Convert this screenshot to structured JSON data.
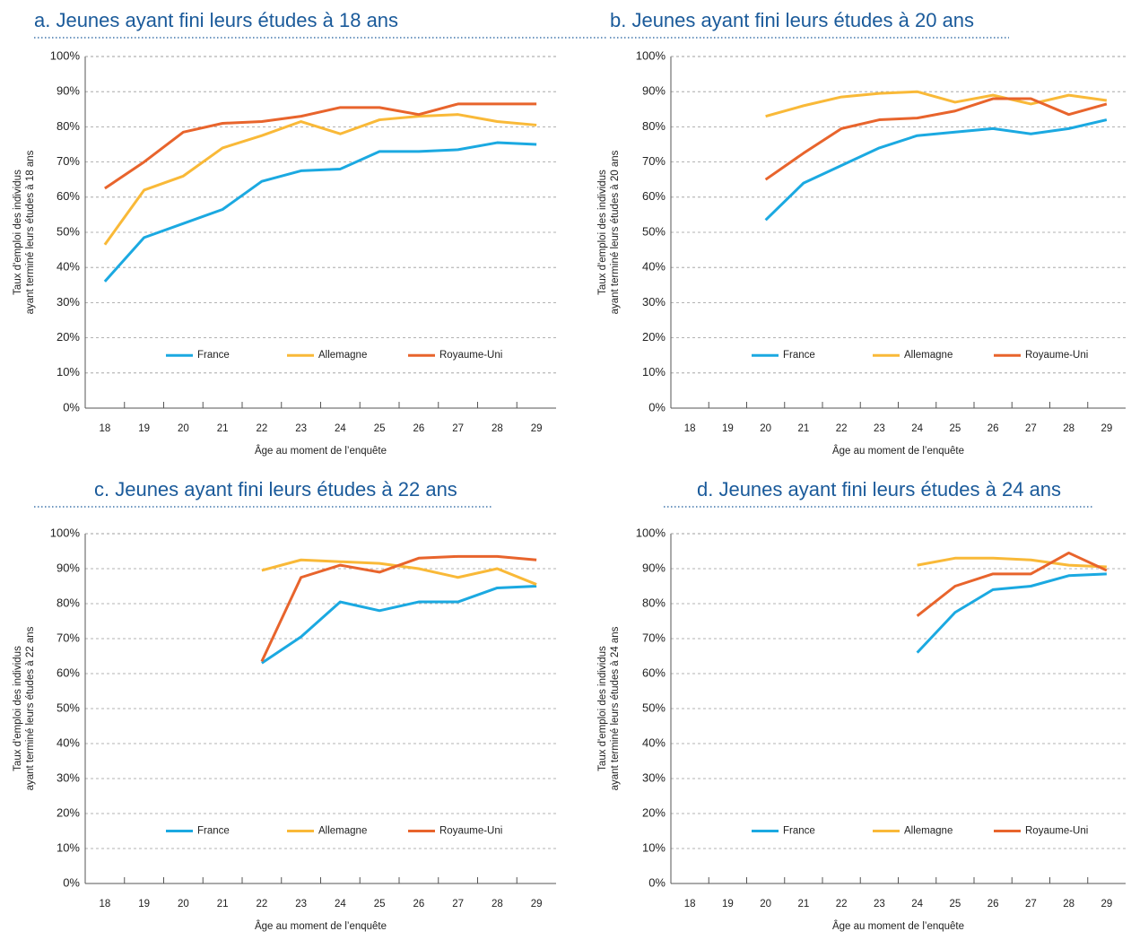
{
  "chart_data": [
    {
      "type": "line",
      "title": "a. Jeunes ayant fini leurs études à 18 ans",
      "ylabel": [
        "Taux d'emploi des individus",
        "ayant terminé leurs études à 18 ans"
      ],
      "xlabel": "Âge au moment de l’enquête",
      "categories": [
        "18",
        "19",
        "20",
        "21",
        "22",
        "23",
        "24",
        "25",
        "26",
        "27",
        "28",
        "29"
      ],
      "ylim": [
        0,
        100
      ],
      "yticks": [
        {
          "value": 0,
          "label": "0%"
        },
        {
          "value": 10,
          "label": "10%"
        },
        {
          "value": 20,
          "label": "20%"
        },
        {
          "value": 30,
          "label": "30%"
        },
        {
          "value": 40,
          "label": "40%"
        },
        {
          "value": 50,
          "label": "50%"
        },
        {
          "value": 60,
          "label": "60%"
        },
        {
          "value": 70,
          "label": "70%"
        },
        {
          "value": 80,
          "label": "80%"
        },
        {
          "value": 90,
          "label": "90%"
        },
        {
          "value": 100,
          "label": "100%"
        }
      ],
      "grid": true,
      "series": [
        {
          "name": "France",
          "color": "#1ba9e1",
          "values": [
            36,
            48.5,
            52.5,
            56.5,
            64.5,
            67.5,
            68,
            73,
            73,
            73.5,
            75.5,
            75
          ]
        },
        {
          "name": "Allemagne",
          "color": "#f9b938",
          "values": [
            46.5,
            62,
            66,
            74,
            77.5,
            81.5,
            78,
            82,
            83,
            83.5,
            81.5,
            80.5
          ]
        },
        {
          "name": "Royaume-Uni",
          "color": "#e8642c",
          "values": [
            62.5,
            70,
            78.5,
            81,
            81.5,
            83,
            85.5,
            85.5,
            83.5,
            86.5,
            86.5,
            86.5
          ]
        }
      ]
    },
    {
      "type": "line",
      "title": "b. Jeunes ayant fini leurs études à 20 ans",
      "ylabel": [
        "Taux d'emploi des individus",
        "ayant terminé leurs études à 20 ans"
      ],
      "xlabel": "Âge au moment de l’enquête",
      "categories": [
        "18",
        "19",
        "20",
        "21",
        "22",
        "23",
        "24",
        "25",
        "26",
        "27",
        "28",
        "29"
      ],
      "ylim": [
        0,
        100
      ],
      "yticks": [
        {
          "value": 0,
          "label": "0%"
        },
        {
          "value": 10,
          "label": "10%"
        },
        {
          "value": 20,
          "label": "20%"
        },
        {
          "value": 30,
          "label": "30%"
        },
        {
          "value": 40,
          "label": "40%"
        },
        {
          "value": 50,
          "label": "50%"
        },
        {
          "value": 60,
          "label": "60%"
        },
        {
          "value": 70,
          "label": "70%"
        },
        {
          "value": 80,
          "label": "80%"
        },
        {
          "value": 90,
          "label": "90%"
        },
        {
          "value": 100,
          "label": "100%"
        }
      ],
      "grid": true,
      "series": [
        {
          "name": "France",
          "color": "#1ba9e1",
          "values": [
            null,
            null,
            53.5,
            64,
            69,
            74,
            77.5,
            78.5,
            79.5,
            78,
            79.5,
            82
          ]
        },
        {
          "name": "Allemagne",
          "color": "#f9b938",
          "values": [
            null,
            null,
            83,
            86,
            88.5,
            89.5,
            90,
            87,
            89,
            86.5,
            89,
            87.5
          ]
        },
        {
          "name": "Royaume-Uni",
          "color": "#e8642c",
          "values": [
            null,
            null,
            65,
            72.5,
            79.5,
            82,
            82.5,
            84.5,
            88,
            88,
            83.5,
            86.5
          ]
        }
      ]
    },
    {
      "type": "line",
      "title": "c. Jeunes ayant fini leurs études à 22 ans",
      "ylabel": [
        "Taux d'emploi des individus",
        "ayant terminé leurs études à 22 ans"
      ],
      "xlabel": "Âge au moment de l’enquête",
      "categories": [
        "18",
        "19",
        "20",
        "21",
        "22",
        "23",
        "24",
        "25",
        "26",
        "27",
        "28",
        "29"
      ],
      "ylim": [
        0,
        100
      ],
      "yticks": [
        {
          "value": 0,
          "label": "0%"
        },
        {
          "value": 10,
          "label": "10%"
        },
        {
          "value": 20,
          "label": "20%"
        },
        {
          "value": 30,
          "label": "30%"
        },
        {
          "value": 40,
          "label": "40%"
        },
        {
          "value": 50,
          "label": "50%"
        },
        {
          "value": 60,
          "label": "60%"
        },
        {
          "value": 70,
          "label": "70%"
        },
        {
          "value": 80,
          "label": "80%"
        },
        {
          "value": 90,
          "label": "90%"
        },
        {
          "value": 100,
          "label": "100%"
        }
      ],
      "grid": true,
      "series": [
        {
          "name": "France",
          "color": "#1ba9e1",
          "values": [
            null,
            null,
            null,
            null,
            63,
            70.5,
            80.5,
            78,
            80.5,
            80.5,
            84.5,
            85
          ]
        },
        {
          "name": "Allemagne",
          "color": "#f9b938",
          "values": [
            null,
            null,
            null,
            null,
            89.5,
            92.5,
            92,
            91.5,
            90,
            87.5,
            90,
            85.5
          ]
        },
        {
          "name": "Royaume-Uni",
          "color": "#e8642c",
          "values": [
            null,
            null,
            null,
            null,
            63.5,
            87.5,
            91,
            89,
            93,
            93.5,
            93.5,
            92.5
          ]
        }
      ]
    },
    {
      "type": "line",
      "title": "d. Jeunes ayant fini leurs études à 24 ans",
      "ylabel": [
        "Taux d'emploi des individus",
        "ayant terminé leurs études à 24 ans"
      ],
      "xlabel": "Âge au moment de l’enquête",
      "categories": [
        "18",
        "19",
        "20",
        "21",
        "22",
        "23",
        "24",
        "25",
        "26",
        "27",
        "28",
        "29"
      ],
      "ylim": [
        0,
        100
      ],
      "yticks": [
        {
          "value": 0,
          "label": "0%"
        },
        {
          "value": 10,
          "label": "10%"
        },
        {
          "value": 20,
          "label": "20%"
        },
        {
          "value": 30,
          "label": "30%"
        },
        {
          "value": 40,
          "label": "40%"
        },
        {
          "value": 50,
          "label": "50%"
        },
        {
          "value": 60,
          "label": "60%"
        },
        {
          "value": 70,
          "label": "70%"
        },
        {
          "value": 80,
          "label": "80%"
        },
        {
          "value": 90,
          "label": "90%"
        },
        {
          "value": 100,
          "label": "100%"
        }
      ],
      "grid": true,
      "series": [
        {
          "name": "France",
          "color": "#1ba9e1",
          "values": [
            null,
            null,
            null,
            null,
            null,
            null,
            66,
            77.5,
            84,
            85,
            88,
            88.5
          ]
        },
        {
          "name": "Allemagne",
          "color": "#f9b938",
          "values": [
            null,
            null,
            null,
            null,
            null,
            null,
            91,
            93,
            93,
            92.5,
            91,
            90.5
          ]
        },
        {
          "name": "Royaume-Uni",
          "color": "#e8642c",
          "values": [
            null,
            null,
            null,
            null,
            null,
            null,
            76.5,
            85,
            88.5,
            88.5,
            94.5,
            89.5
          ]
        }
      ]
    }
  ]
}
